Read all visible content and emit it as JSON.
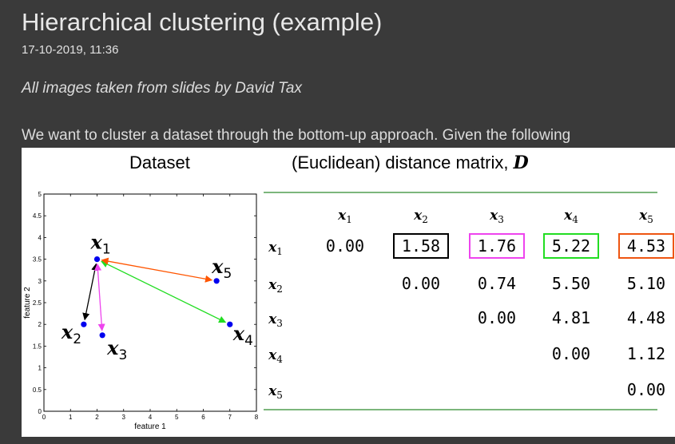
{
  "page": {
    "title": "Hierarchical clustering (example)",
    "date": "17-10-2019, 11:36",
    "attribution": "All images taken from slides by David Tax",
    "intro": "We want to cluster a dataset through the bottom-up approach. Given the following"
  },
  "figure": {
    "dataset_caption": "Dataset",
    "matrix_caption": "(Euclidean) distance matrix, ",
    "matrix_symbol": "D"
  },
  "chart_data": {
    "type": "scatter",
    "xlabel": "feature 1",
    "ylabel": "feature 2",
    "xlim": [
      0,
      8
    ],
    "ylim": [
      0,
      5
    ],
    "xticks": [
      "0",
      "1",
      "2",
      "3",
      "4",
      "5",
      "6",
      "7",
      "8"
    ],
    "yticks": [
      "0",
      "0.5",
      "1",
      "1.5",
      "2",
      "2.5",
      "3",
      "3.5",
      "4",
      "4.5",
      "5"
    ],
    "points": [
      {
        "label": "x1",
        "sub": "1",
        "x": 2.0,
        "y": 3.5
      },
      {
        "label": "x2",
        "sub": "2",
        "x": 1.5,
        "y": 2.0
      },
      {
        "label": "x3",
        "sub": "3",
        "x": 2.2,
        "y": 1.75
      },
      {
        "label": "x4",
        "sub": "4",
        "x": 7.0,
        "y": 2.0
      },
      {
        "label": "x5",
        "sub": "5",
        "x": 6.5,
        "y": 3.0
      }
    ],
    "arrows": [
      {
        "from": 0,
        "to": 1,
        "color": "#000000"
      },
      {
        "from": 0,
        "to": 2,
        "color": "#ee44ee"
      },
      {
        "from": 0,
        "to": 3,
        "color": "#22dd22"
      },
      {
        "from": 0,
        "to": 4,
        "color": "#ff5500"
      }
    ]
  },
  "matrix": {
    "col_labels": [
      "x1",
      "x2",
      "x3",
      "x4",
      "x5"
    ],
    "row_labels": [
      "x1",
      "x2",
      "x3",
      "x4",
      "x5"
    ],
    "rows": [
      [
        "0.00",
        "1.58",
        "1.76",
        "5.22",
        "4.53"
      ],
      [
        "",
        "0.00",
        "0.74",
        "5.50",
        "5.10"
      ],
      [
        "",
        "",
        "0.00",
        "4.81",
        "4.48"
      ],
      [
        "",
        "",
        "",
        "0.00",
        "1.12"
      ],
      [
        "",
        "",
        "",
        "",
        "0.00"
      ]
    ],
    "highlights": [
      {
        "row": 0,
        "col": 1,
        "color": "#000000"
      },
      {
        "row": 0,
        "col": 2,
        "color": "#ee44ee"
      },
      {
        "row": 0,
        "col": 3,
        "color": "#22dd22"
      },
      {
        "row": 0,
        "col": 4,
        "color": "#ee5511"
      }
    ],
    "rule_color": "#2e8b2e"
  }
}
